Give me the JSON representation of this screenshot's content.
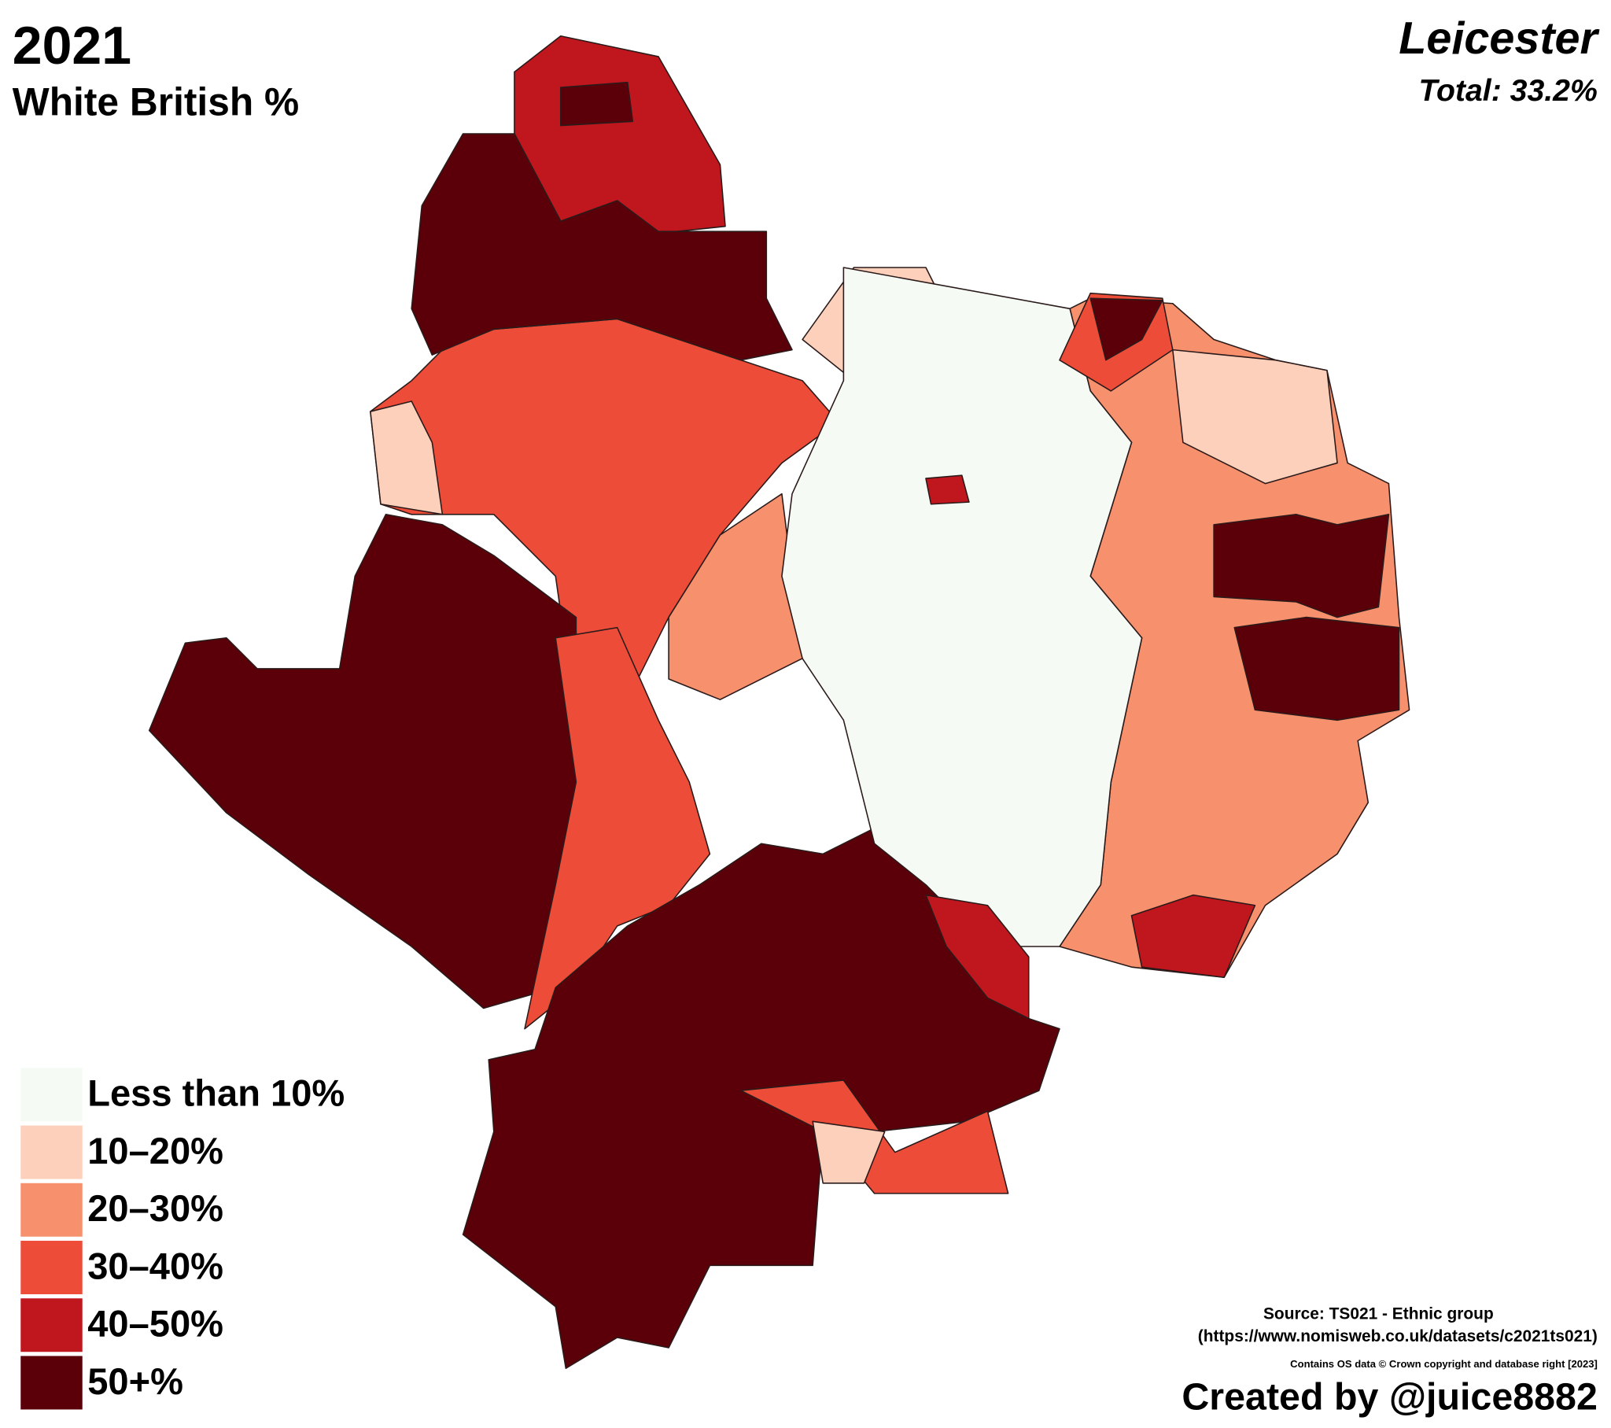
{
  "title": "2021",
  "subtitle": "White British %",
  "place": "Leicester",
  "total": "Total: 33.2%",
  "legend": [
    {
      "label": "Less than 10%",
      "color": "#f5fbf4"
    },
    {
      "label": "10–20%",
      "color": "#fdd0bc"
    },
    {
      "label": "20–30%",
      "color": "#f7906d"
    },
    {
      "label": "30–40%",
      "color": "#ed4c39"
    },
    {
      "label": "40–50%",
      "color": "#c0161d"
    },
    {
      "label": "50+%",
      "color": "#5b0009"
    }
  ],
  "source": "Source: TS021 - Ethnic group",
  "source_url": "(https://www.nomisweb.co.uk/datasets/c2021ts021)",
  "copyright": "Contains OS data © Crown copyright and database right [2023]",
  "credit": "Created by @juice8882"
}
